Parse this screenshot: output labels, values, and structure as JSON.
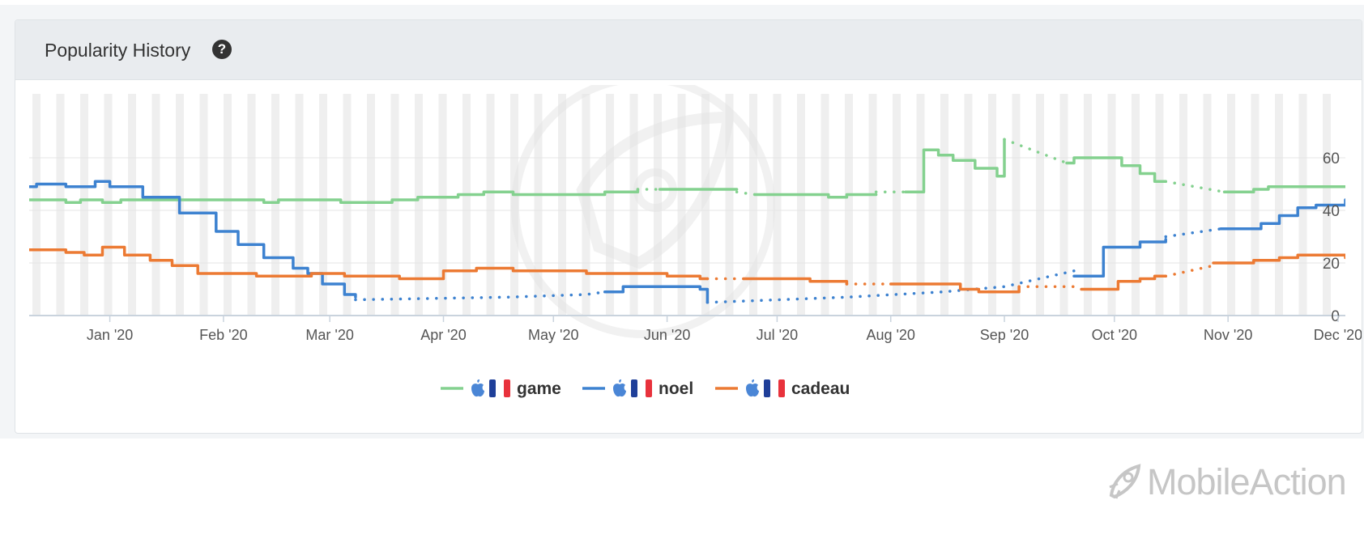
{
  "card": {
    "title": "Popularity History",
    "help_icon": "question-circle-icon"
  },
  "brand": {
    "name": "MobileAction",
    "icon": "mobileaction-rocket-icon"
  },
  "colors": {
    "game": "#84d18f",
    "noel": "#3d82d0",
    "cadeau": "#ec7a33",
    "grid": "#e6e6e6",
    "stripe": "#efefef",
    "axis": "#c9d3dd"
  },
  "chart_data": {
    "type": "line",
    "title": "",
    "xlabel": "",
    "ylabel": "",
    "x_range": [
      "2019-12-10",
      "2020-12-03"
    ],
    "ylim": [
      0,
      80
    ],
    "yticks": [
      0,
      20,
      40,
      60
    ],
    "x_ticks": [
      {
        "date": "2020-01-01",
        "label": "Jan '20"
      },
      {
        "date": "2020-02-01",
        "label": "Feb '20"
      },
      {
        "date": "2020-03-01",
        "label": "Mar '20"
      },
      {
        "date": "2020-04-01",
        "label": "Apr '20"
      },
      {
        "date": "2020-05-01",
        "label": "May '20"
      },
      {
        "date": "2020-06-01",
        "label": "Jun '20"
      },
      {
        "date": "2020-07-01",
        "label": "Jul '20"
      },
      {
        "date": "2020-08-01",
        "label": "Aug '20"
      },
      {
        "date": "2020-09-01",
        "label": "Sep '20"
      },
      {
        "date": "2020-10-01",
        "label": "Oct '20"
      },
      {
        "date": "2020-11-01",
        "label": "Nov '20"
      },
      {
        "date": "2020-12-01",
        "label": "Dec '20"
      }
    ],
    "grid": true,
    "legend_position": "bottom-center",
    "series": [
      {
        "name": "game",
        "platform_icon": "apple-icon",
        "country_icon": "france-flag-icon",
        "segments": [
          {
            "style": "solid",
            "points": [
              [
                "2019-12-10",
                44
              ],
              [
                "2019-12-18",
                44
              ],
              [
                "2019-12-20",
                43
              ],
              [
                "2019-12-24",
                44
              ],
              [
                "2019-12-30",
                43
              ],
              [
                "2020-01-04",
                44
              ],
              [
                "2020-02-10",
                44
              ],
              [
                "2020-02-12",
                43
              ],
              [
                "2020-02-16",
                44
              ],
              [
                "2020-03-01",
                44
              ],
              [
                "2020-03-04",
                43
              ],
              [
                "2020-03-12",
                43
              ],
              [
                "2020-03-18",
                44
              ],
              [
                "2020-03-25",
                45
              ],
              [
                "2020-04-05",
                46
              ],
              [
                "2020-04-12",
                47
              ],
              [
                "2020-04-20",
                46
              ],
              [
                "2020-05-10",
                46
              ],
              [
                "2020-05-15",
                47
              ],
              [
                "2020-05-24",
                48
              ]
            ]
          },
          {
            "style": "dotted",
            "points": [
              [
                "2020-05-24",
                48
              ],
              [
                "2020-05-30",
                48
              ]
            ]
          },
          {
            "style": "solid",
            "points": [
              [
                "2020-05-30",
                48
              ],
              [
                "2020-06-20",
                48
              ]
            ]
          },
          {
            "style": "dotted",
            "points": [
              [
                "2020-06-20",
                47
              ],
              [
                "2020-06-25",
                46
              ]
            ]
          },
          {
            "style": "solid",
            "points": [
              [
                "2020-06-25",
                46
              ],
              [
                "2020-07-12",
                46
              ],
              [
                "2020-07-15",
                45
              ],
              [
                "2020-07-20",
                46
              ],
              [
                "2020-07-28",
                46
              ]
            ]
          },
          {
            "style": "dotted",
            "points": [
              [
                "2020-07-28",
                47
              ],
              [
                "2020-08-05",
                47
              ]
            ]
          },
          {
            "style": "solid",
            "points": [
              [
                "2020-08-05",
                47
              ],
              [
                "2020-08-08",
                47
              ],
              [
                "2020-08-10",
                63
              ],
              [
                "2020-08-14",
                61
              ],
              [
                "2020-08-18",
                59
              ],
              [
                "2020-08-24",
                56
              ],
              [
                "2020-08-30",
                53
              ],
              [
                "2020-08-31",
                53
              ],
              [
                "2020-09-01",
                67
              ]
            ]
          },
          {
            "style": "dotted",
            "points": [
              [
                "2020-09-01",
                67
              ],
              [
                "2020-09-18",
                58
              ]
            ]
          },
          {
            "style": "solid",
            "points": [
              [
                "2020-09-18",
                58
              ],
              [
                "2020-09-20",
                60
              ],
              [
                "2020-09-27",
                60
              ],
              [
                "2020-10-03",
                57
              ],
              [
                "2020-10-08",
                54
              ],
              [
                "2020-10-12",
                51
              ],
              [
                "2020-10-15",
                51
              ]
            ]
          },
          {
            "style": "dotted",
            "points": [
              [
                "2020-10-15",
                51
              ],
              [
                "2020-10-31",
                47
              ]
            ]
          },
          {
            "style": "solid",
            "points": [
              [
                "2020-10-31",
                47
              ],
              [
                "2020-11-08",
                48
              ],
              [
                "2020-11-12",
                49
              ],
              [
                "2020-12-03",
                49
              ]
            ]
          }
        ]
      },
      {
        "name": "noel",
        "platform_icon": "apple-icon",
        "country_icon": "france-flag-icon",
        "segments": [
          {
            "style": "solid",
            "points": [
              [
                "2019-12-10",
                49
              ],
              [
                "2019-12-12",
                50
              ],
              [
                "2019-12-20",
                49
              ],
              [
                "2019-12-28",
                51
              ],
              [
                "2020-01-01",
                49
              ],
              [
                "2020-01-10",
                45
              ],
              [
                "2020-01-20",
                39
              ],
              [
                "2020-01-30",
                32
              ],
              [
                "2020-02-05",
                27
              ],
              [
                "2020-02-12",
                22
              ],
              [
                "2020-02-20",
                18
              ],
              [
                "2020-02-24",
                16
              ],
              [
                "2020-02-28",
                12
              ],
              [
                "2020-03-05",
                8
              ],
              [
                "2020-03-08",
                7
              ]
            ]
          },
          {
            "style": "dotted",
            "points": [
              [
                "2020-03-08",
                6
              ],
              [
                "2020-04-18",
                7
              ],
              [
                "2020-05-10",
                8
              ],
              [
                "2020-05-15",
                9
              ]
            ]
          },
          {
            "style": "solid",
            "points": [
              [
                "2020-05-15",
                9
              ],
              [
                "2020-05-20",
                11
              ],
              [
                "2020-06-10",
                10
              ],
              [
                "2020-06-12",
                5
              ]
            ]
          },
          {
            "style": "dotted",
            "points": [
              [
                "2020-06-12",
                5
              ],
              [
                "2020-07-20",
                7
              ],
              [
                "2020-08-15",
                9
              ],
              [
                "2020-09-01",
                11
              ],
              [
                "2020-09-20",
                17
              ]
            ]
          },
          {
            "style": "solid",
            "points": [
              [
                "2020-09-20",
                15
              ],
              [
                "2020-09-26",
                15
              ],
              [
                "2020-09-28",
                26
              ],
              [
                "2020-10-04",
                26
              ],
              [
                "2020-10-08",
                28
              ],
              [
                "2020-10-15",
                29
              ]
            ]
          },
          {
            "style": "dotted",
            "points": [
              [
                "2020-10-15",
                30
              ],
              [
                "2020-10-30",
                33
              ]
            ]
          },
          {
            "style": "solid",
            "points": [
              [
                "2020-10-30",
                33
              ],
              [
                "2020-11-10",
                35
              ],
              [
                "2020-11-15",
                38
              ],
              [
                "2020-11-20",
                41
              ],
              [
                "2020-11-25",
                42
              ],
              [
                "2020-12-03",
                44
              ]
            ]
          }
        ]
      },
      {
        "name": "cadeau",
        "platform_icon": "apple-icon",
        "country_icon": "france-flag-icon",
        "segments": [
          {
            "style": "solid",
            "points": [
              [
                "2019-12-10",
                25
              ],
              [
                "2019-12-15",
                25
              ],
              [
                "2019-12-20",
                24
              ],
              [
                "2019-12-25",
                23
              ],
              [
                "2019-12-30",
                26
              ],
              [
                "2020-01-05",
                23
              ],
              [
                "2020-01-12",
                21
              ],
              [
                "2020-01-18",
                19
              ],
              [
                "2020-01-25",
                16
              ],
              [
                "2020-02-10",
                15
              ],
              [
                "2020-02-25",
                16
              ],
              [
                "2020-03-05",
                15
              ],
              [
                "2020-03-20",
                14
              ],
              [
                "2020-04-01",
                17
              ],
              [
                "2020-04-10",
                18
              ],
              [
                "2020-04-20",
                17
              ],
              [
                "2020-05-10",
                16
              ],
              [
                "2020-06-01",
                15
              ],
              [
                "2020-06-10",
                14
              ],
              [
                "2020-06-12",
                14
              ]
            ]
          },
          {
            "style": "dotted",
            "points": [
              [
                "2020-06-12",
                14
              ],
              [
                "2020-06-22",
                14
              ]
            ]
          },
          {
            "style": "solid",
            "points": [
              [
                "2020-06-22",
                14
              ],
              [
                "2020-07-10",
                13
              ],
              [
                "2020-07-20",
                12
              ]
            ]
          },
          {
            "style": "dotted",
            "points": [
              [
                "2020-07-20",
                12
              ],
              [
                "2020-08-01",
                12
              ]
            ]
          },
          {
            "style": "solid",
            "points": [
              [
                "2020-08-01",
                12
              ],
              [
                "2020-08-20",
                10
              ],
              [
                "2020-08-25",
                9
              ],
              [
                "2020-09-05",
                11
              ]
            ]
          },
          {
            "style": "dotted",
            "points": [
              [
                "2020-09-05",
                11
              ],
              [
                "2020-09-22",
                11
              ]
            ]
          },
          {
            "style": "solid",
            "points": [
              [
                "2020-09-22",
                10
              ],
              [
                "2020-09-30",
                10
              ],
              [
                "2020-10-02",
                13
              ],
              [
                "2020-10-08",
                14
              ],
              [
                "2020-10-12",
                15
              ],
              [
                "2020-10-15",
                15
              ]
            ]
          },
          {
            "style": "dotted",
            "points": [
              [
                "2020-10-15",
                15
              ],
              [
                "2020-10-28",
                19
              ]
            ]
          },
          {
            "style": "solid",
            "points": [
              [
                "2020-10-28",
                20
              ],
              [
                "2020-11-08",
                21
              ],
              [
                "2020-11-15",
                22
              ],
              [
                "2020-11-20",
                23
              ],
              [
                "2020-12-03",
                22
              ]
            ]
          }
        ]
      }
    ]
  }
}
